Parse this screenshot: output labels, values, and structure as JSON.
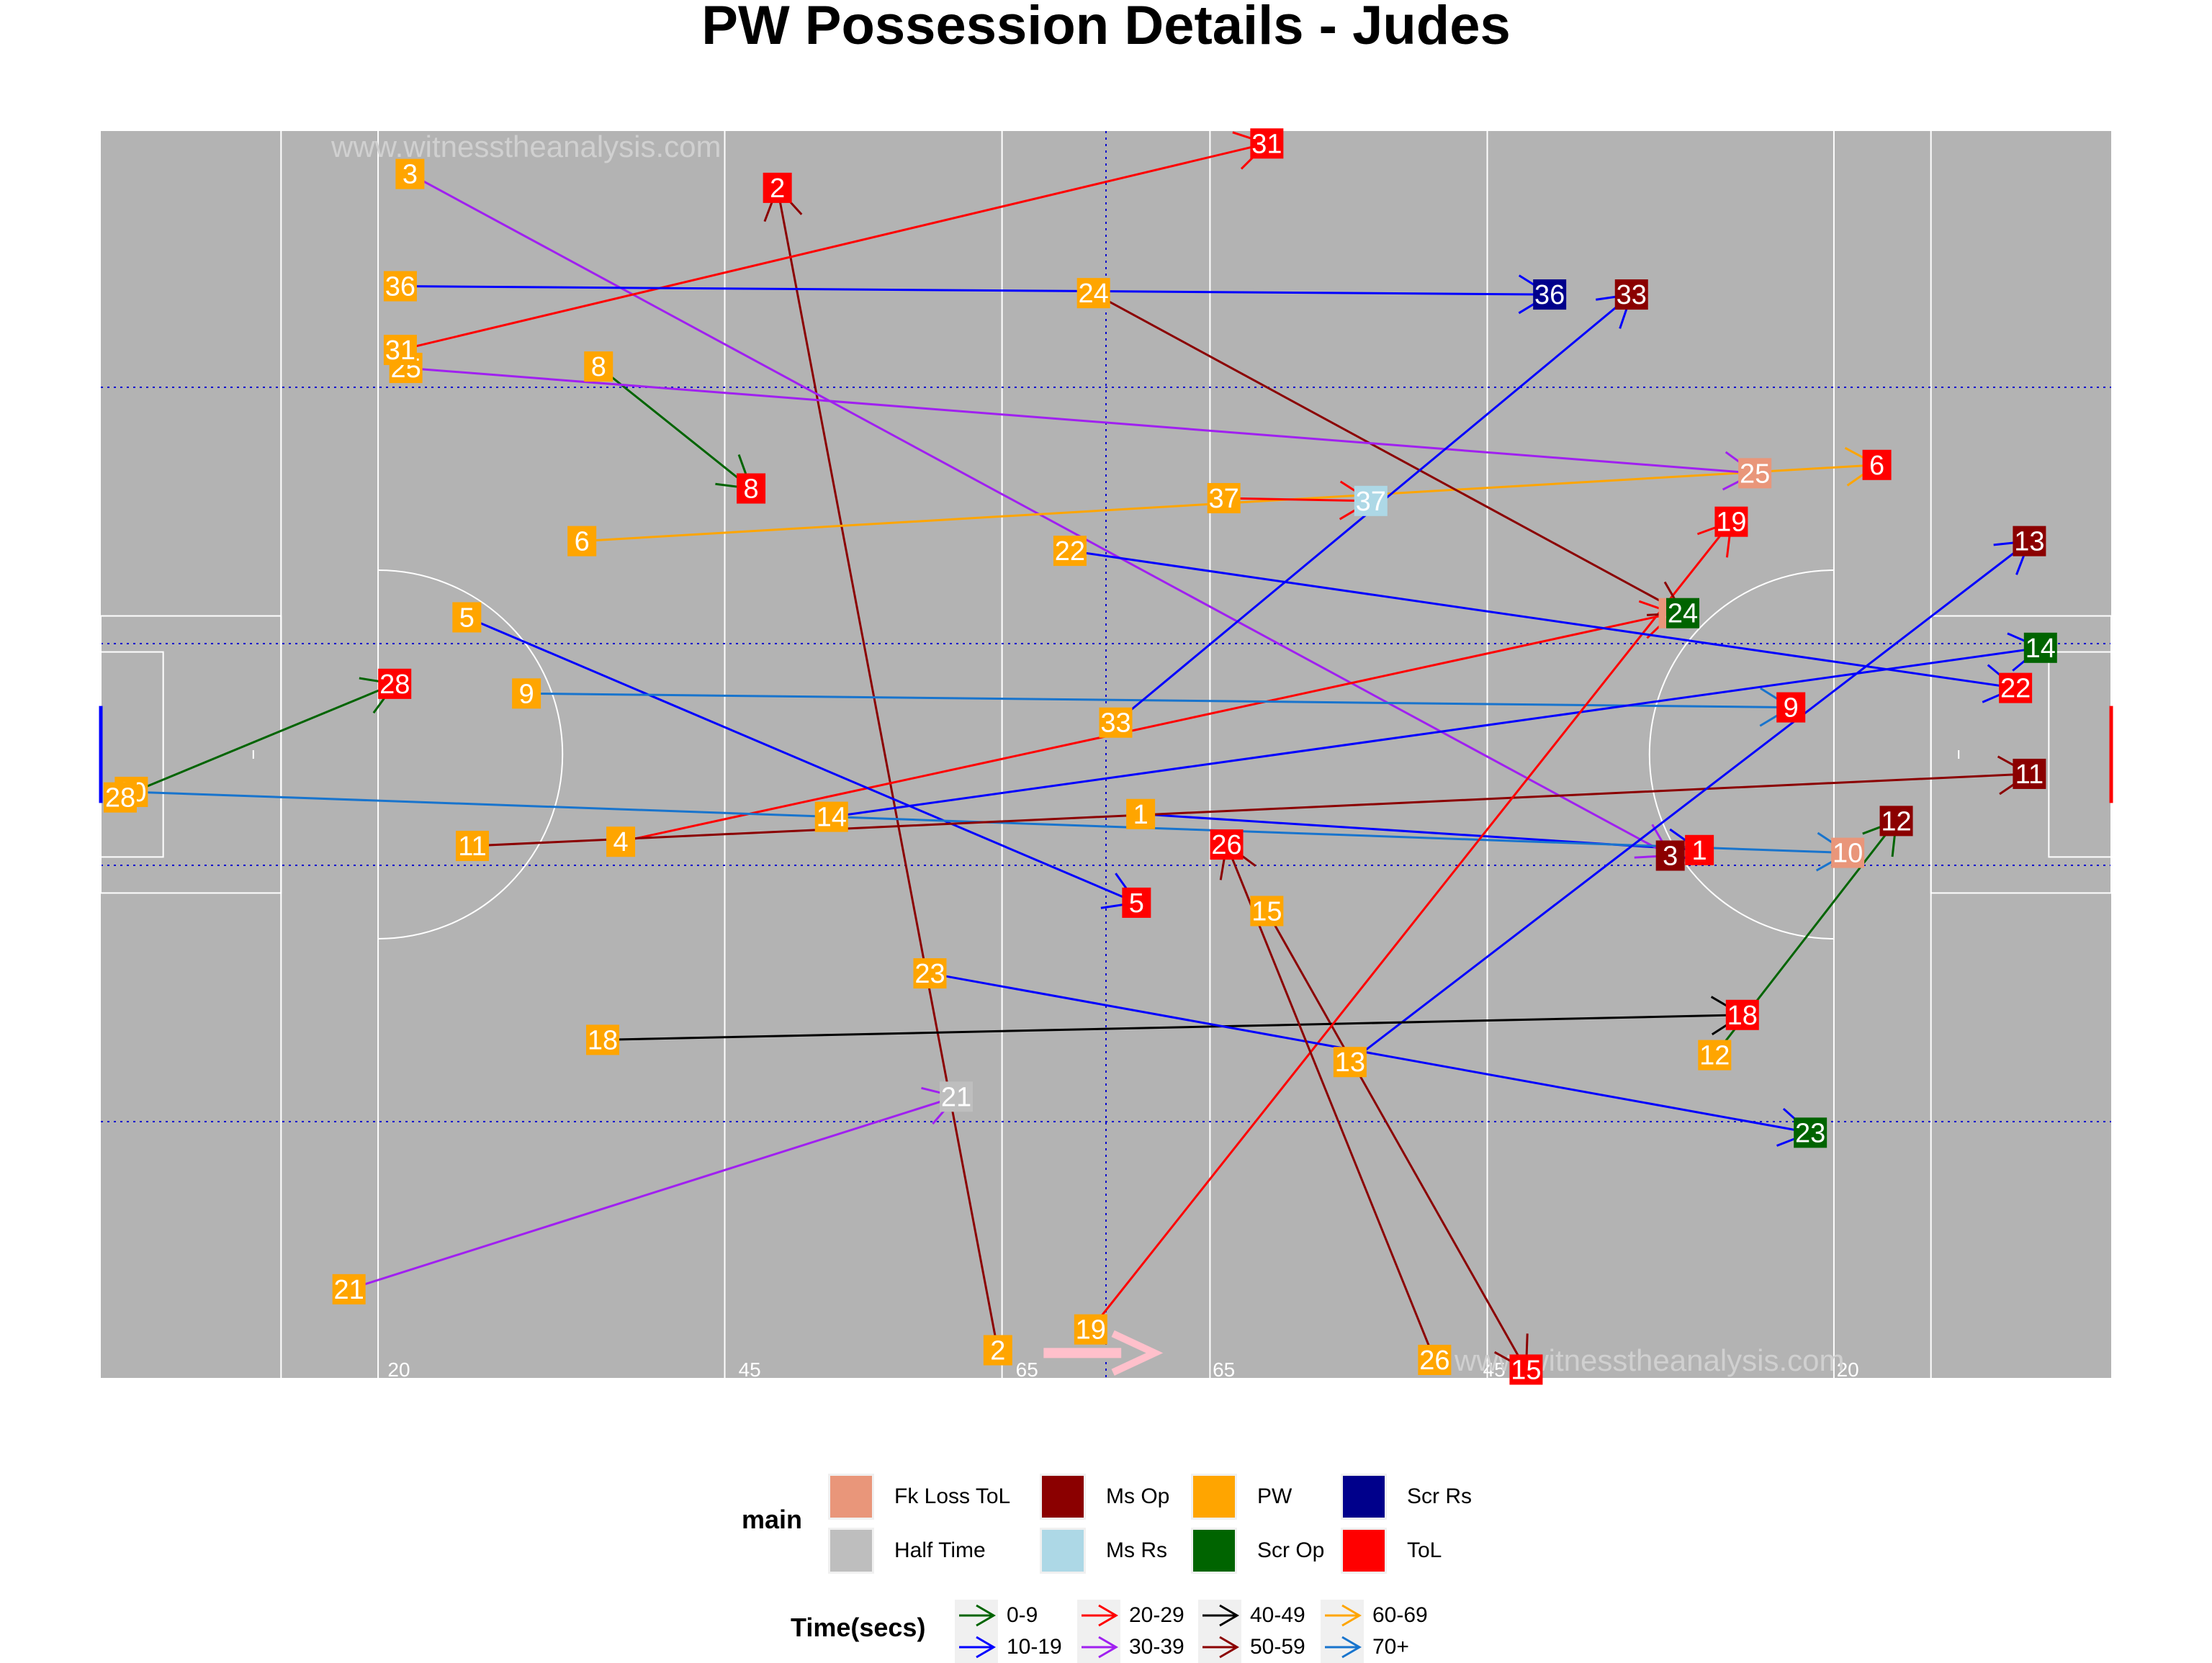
{
  "chart_data": {
    "type": "scatter",
    "title": "PW Possession Details - Judes",
    "watermark": "www.witnesstheanalysis.com",
    "xlim": [
      0,
      145
    ],
    "ylim": [
      0,
      90
    ],
    "distance_labels": [
      {
        "x": 21.5,
        "text": "20"
      },
      {
        "x": 46.8,
        "text": "45"
      },
      {
        "x": 66.8,
        "text": "65"
      },
      {
        "x": 81,
        "text": "65"
      },
      {
        "x": 100.5,
        "text": "45"
      },
      {
        "x": 126,
        "text": "20"
      }
    ],
    "colors": {
      "Fk Loss ToL": "#E9967A",
      "Half Time": "#BEBEBE",
      "Ms Op": "#8B0000",
      "Ms Rs": "#ADD8E6",
      "PW": "#FFA500",
      "Scr Op": "#006400",
      "Scr Rs": "#00008B",
      "ToL": "#FF0000"
    },
    "time_colors": {
      "0-9": "#006400",
      "10-19": "#0000FF",
      "20-29": "#FF0000",
      "30-39": "#A020F0",
      "40-49": "#000000",
      "50-59": "#8B0000",
      "60-69": "#FFA500",
      "70+": "#1874CD"
    },
    "legend_main_title": "main",
    "legend_main": [
      "Fk Loss ToL",
      "Half Time",
      "Ms Op",
      "Ms Rs",
      "PW",
      "Scr Op",
      "Scr Rs",
      "ToL"
    ],
    "legend_time_title": "Time(secs)",
    "legend_time": [
      "0-9",
      "10-19",
      "20-29",
      "30-39",
      "40-49",
      "50-59",
      "60-69",
      "70+"
    ],
    "possessions": [
      {
        "id": "1",
        "sx": 75,
        "sy": 40.7,
        "ex": 115.3,
        "ey": 38.1,
        "outcome": "ToL",
        "time": "10-19"
      },
      {
        "id": "2",
        "sx": 64.7,
        "sy": 2,
        "ex": 48.8,
        "ey": 85.9,
        "outcome": "ToL",
        "time": "50-59"
      },
      {
        "id": "3",
        "sx": 22.3,
        "sy": 86.9,
        "ex": 113.2,
        "ey": 37.7,
        "outcome": "Ms Op",
        "time": "30-39"
      },
      {
        "id": "4",
        "sx": 37.5,
        "sy": 38.7,
        "ex": 113.4,
        "ey": 55.2,
        "outcome": "Fk Loss ToL",
        "time": "20-29"
      },
      {
        "id": "5",
        "sx": 26.4,
        "sy": 54.9,
        "ex": 74.7,
        "ey": 34.3,
        "outcome": "ToL",
        "time": "10-19"
      },
      {
        "id": "6",
        "sx": 34.7,
        "sy": 60.4,
        "ex": 128.1,
        "ey": 65.9,
        "outcome": "ToL",
        "time": "60-69"
      },
      {
        "id": "8",
        "sx": 35.9,
        "sy": 73,
        "ex": 46.9,
        "ey": 64.2,
        "outcome": "ToL",
        "time": "0-9"
      },
      {
        "id": "9",
        "sx": 30.7,
        "sy": 49.4,
        "ex": 121.9,
        "ey": 48.4,
        "outcome": "ToL",
        "time": "70+"
      },
      {
        "id": "10",
        "sx": 2.2,
        "sy": 42.3,
        "ex": 126,
        "ey": 37.9,
        "outcome": "Fk Loss ToL",
        "time": "70+"
      },
      {
        "id": "11",
        "sx": 26.8,
        "sy": 38.4,
        "ex": 139.1,
        "ey": 43.6,
        "outcome": "Ms Op",
        "time": "50-59"
      },
      {
        "id": "12",
        "sx": 116.4,
        "sy": 23.3,
        "ex": 129.5,
        "ey": 40.2,
        "outcome": "Ms Op",
        "time": "0-9"
      },
      {
        "id": "13",
        "sx": 90.1,
        "sy": 22.8,
        "ex": 139.1,
        "ey": 60.4,
        "outcome": "Ms Op",
        "time": "10-19"
      },
      {
        "id": "14",
        "sx": 52.7,
        "sy": 40.5,
        "ex": 139.9,
        "ey": 52.7,
        "outcome": "Scr Op",
        "time": "10-19"
      },
      {
        "id": "15",
        "sx": 84.1,
        "sy": 33.7,
        "ex": 102.8,
        "ey": 0.6,
        "outcome": "ToL",
        "time": "50-59"
      },
      {
        "id": "18",
        "sx": 36.2,
        "sy": 24.4,
        "ex": 118.4,
        "ey": 26.2,
        "outcome": "ToL",
        "time": "40-49"
      },
      {
        "id": "19",
        "sx": 71.4,
        "sy": 3.5,
        "ex": 117.6,
        "ey": 61.8,
        "outcome": "ToL",
        "time": "20-29"
      },
      {
        "id": "21",
        "sx": 17.9,
        "sy": 6.4,
        "ex": 61.7,
        "ey": 20.3,
        "outcome": "Half Time",
        "time": "30-39"
      },
      {
        "id": "22",
        "sx": 69.9,
        "sy": 59.7,
        "ex": 138.1,
        "ey": 49.8,
        "outcome": "ToL",
        "time": "10-19"
      },
      {
        "id": "23",
        "sx": 59.8,
        "sy": 29.2,
        "ex": 123.3,
        "ey": 17.7,
        "outcome": "Scr Op",
        "time": "10-19"
      },
      {
        "id": "24",
        "sx": 71.6,
        "sy": 78.3,
        "ex": 114.1,
        "ey": 55.2,
        "outcome": "Scr Op",
        "time": "50-59"
      },
      {
        "id": "25",
        "sx": 22,
        "sy": 72.9,
        "ex": 119.3,
        "ey": 65.3,
        "outcome": "Fk Loss ToL",
        "time": "30-39"
      },
      {
        "id": "26",
        "sx": 96.2,
        "sy": 1.3,
        "ex": 81.2,
        "ey": 38.5,
        "outcome": "ToL",
        "time": "50-59"
      },
      {
        "id": "28",
        "sx": 1.4,
        "sy": 41.9,
        "ex": 21.2,
        "ey": 50.1,
        "outcome": "ToL",
        "time": "0-9"
      },
      {
        "id": "31",
        "sx": 21.6,
        "sy": 74.2,
        "ex": 84.1,
        "ey": 89.1,
        "outcome": "ToL",
        "time": "20-29"
      },
      {
        "id": "33",
        "sx": 73.2,
        "sy": 47.3,
        "ex": 110.4,
        "ey": 78.2,
        "outcome": "Ms Op",
        "time": "10-19"
      },
      {
        "id": "36",
        "sx": 21.6,
        "sy": 78.8,
        "ex": 104.5,
        "ey": 78.2,
        "outcome": "Scr Rs",
        "time": "10-19"
      },
      {
        "id": "37",
        "sx": 81,
        "sy": 63.5,
        "ex": 91.6,
        "ey": 63.3,
        "outcome": "Ms Rs",
        "time": "20-29"
      }
    ]
  }
}
